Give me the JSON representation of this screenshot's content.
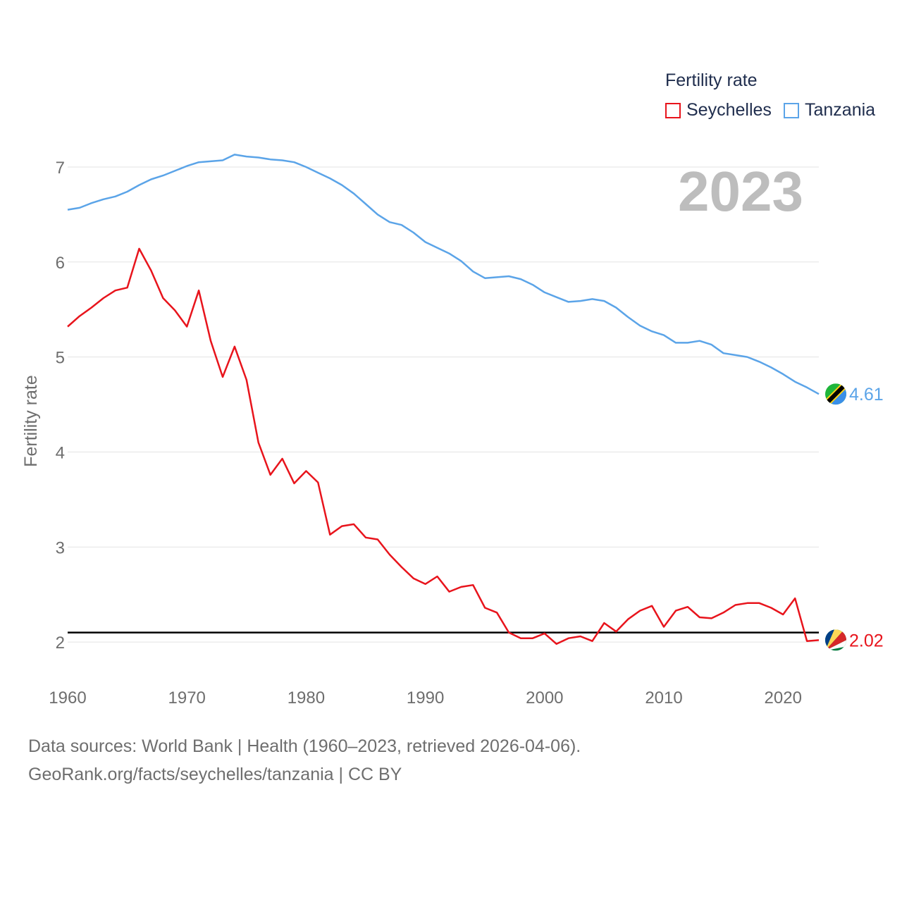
{
  "legend": {
    "title": "Fertility rate",
    "items": [
      {
        "name": "Seychelles",
        "color": "#e8141c"
      },
      {
        "name": "Tanzania",
        "color": "#5ba4e8"
      }
    ]
  },
  "year_label": "2023",
  "sources": {
    "line1": "Data sources: World Bank | Health (1960–2023, retrieved 2026-04-06).",
    "line2": "GeoRank.org/facts/seychelles/tanzania | CC BY"
  },
  "chart_data": {
    "type": "line",
    "title": "Fertility rate",
    "xlabel": "",
    "ylabel": "Fertility rate",
    "xlim": [
      1960,
      2023
    ],
    "ylim": [
      1.6,
      7.2
    ],
    "x_ticks": [
      1960,
      1970,
      1980,
      1990,
      2000,
      2010,
      2020
    ],
    "y_ticks": [
      2,
      3,
      4,
      5,
      6,
      7
    ],
    "grid": true,
    "reference_line": {
      "y": 2.1,
      "color": "#000000"
    },
    "x": [
      1960,
      1961,
      1962,
      1963,
      1964,
      1965,
      1966,
      1967,
      1968,
      1969,
      1970,
      1971,
      1972,
      1973,
      1974,
      1975,
      1976,
      1977,
      1978,
      1979,
      1980,
      1981,
      1982,
      1983,
      1984,
      1985,
      1986,
      1987,
      1988,
      1989,
      1990,
      1991,
      1992,
      1993,
      1994,
      1995,
      1996,
      1997,
      1998,
      1999,
      2000,
      2001,
      2002,
      2003,
      2004,
      2005,
      2006,
      2007,
      2008,
      2009,
      2010,
      2011,
      2012,
      2013,
      2014,
      2015,
      2016,
      2017,
      2018,
      2019,
      2020,
      2021,
      2022,
      2023
    ],
    "series": [
      {
        "name": "Seychelles",
        "color": "#e8141c",
        "end_label": "2.02",
        "values": [
          5.32,
          5.43,
          5.52,
          5.62,
          5.7,
          5.73,
          6.14,
          5.91,
          5.62,
          5.49,
          5.32,
          5.7,
          5.17,
          4.79,
          5.11,
          4.76,
          4.1,
          3.76,
          3.93,
          3.67,
          3.8,
          3.68,
          3.13,
          3.22,
          3.24,
          3.1,
          3.08,
          2.92,
          2.79,
          2.67,
          2.61,
          2.69,
          2.53,
          2.58,
          2.6,
          2.36,
          2.31,
          2.1,
          2.04,
          2.04,
          2.09,
          1.98,
          2.04,
          2.06,
          2.01,
          2.2,
          2.11,
          2.24,
          2.33,
          2.38,
          2.16,
          2.33,
          2.37,
          2.26,
          2.25,
          2.31,
          2.39,
          2.41,
          2.41,
          2.36,
          2.29,
          2.46,
          2.01,
          2.02
        ]
      },
      {
        "name": "Tanzania",
        "color": "#5ba4e8",
        "end_label": "4.61",
        "values": [
          6.55,
          6.57,
          6.62,
          6.66,
          6.69,
          6.74,
          6.81,
          6.87,
          6.91,
          6.96,
          7.01,
          7.05,
          7.06,
          7.07,
          7.13,
          7.11,
          7.1,
          7.08,
          7.07,
          7.05,
          7.0,
          6.94,
          6.88,
          6.81,
          6.72,
          6.61,
          6.5,
          6.42,
          6.39,
          6.31,
          6.21,
          6.15,
          6.09,
          6.01,
          5.9,
          5.83,
          5.84,
          5.85,
          5.82,
          5.76,
          5.68,
          5.63,
          5.58,
          5.59,
          5.61,
          5.59,
          5.52,
          5.42,
          5.33,
          5.27,
          5.23,
          5.15,
          5.15,
          5.17,
          5.13,
          5.04,
          5.02,
          5.0,
          4.95,
          4.89,
          4.82,
          4.74,
          4.68,
          4.61
        ]
      }
    ]
  }
}
